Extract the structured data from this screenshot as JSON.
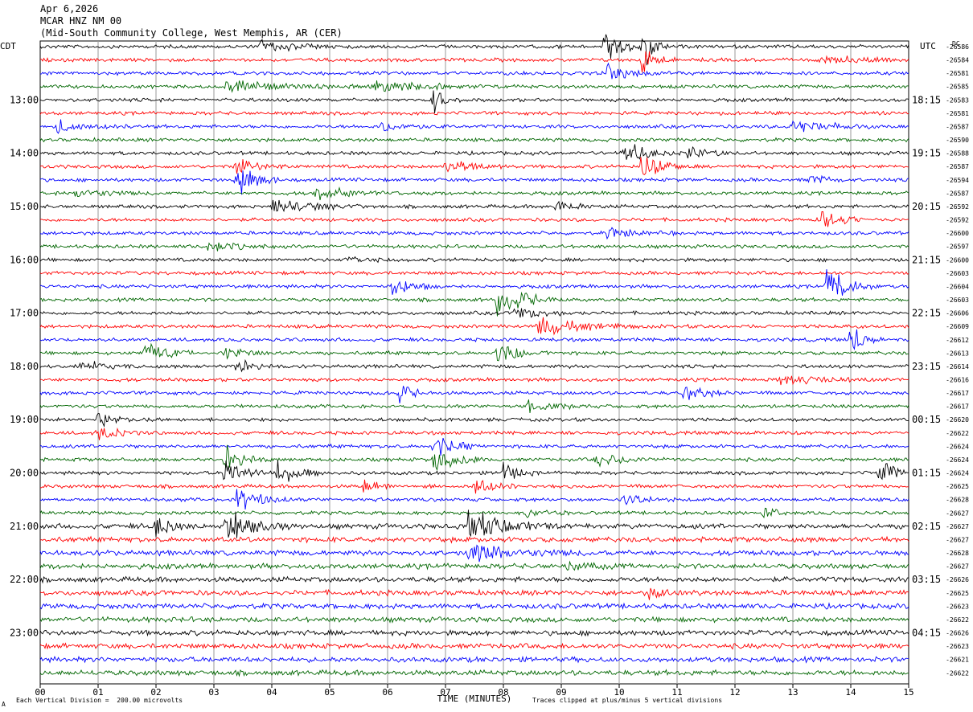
{
  "header": {
    "date": "Apr 6,2026",
    "station": "MCAR HNZ NM 00",
    "location": "(Mid-South Community College, West Memphis, AR (CER)"
  },
  "axes": {
    "left_tz": "CDT",
    "right_tz": "UTC",
    "right_top_label": "DC",
    "xlabel": "TIME (MINUTES)"
  },
  "footer": {
    "left_note": "Each Vertical Division =  200.00 microvolts",
    "right_note": "Traces clipped at plus/minus 5 vertical divisions",
    "corner_mark": "A"
  },
  "colors": {
    "trace_cycle": [
      "#000000",
      "#ff0000",
      "#0000ff",
      "#006600"
    ],
    "grid": "#9a9a9a"
  },
  "chart_data": {
    "type": "line",
    "subtype": "helicorder",
    "x_ticks": [
      "00",
      "01",
      "02",
      "03",
      "04",
      "05",
      "06",
      "07",
      "08",
      "09",
      "10",
      "11",
      "12",
      "13",
      "14",
      "15"
    ],
    "xlim": [
      0,
      15
    ],
    "rows_per_hour": 4,
    "left_hour_labels": [
      "13:00",
      "14:00",
      "15:00",
      "16:00",
      "17:00",
      "18:00",
      "19:00",
      "20:00",
      "21:00",
      "22:00",
      "23:00"
    ],
    "right_hour_labels": [
      "18:15",
      "19:15",
      "20:15",
      "21:15",
      "22:15",
      "23:15",
      "00:15",
      "01:15",
      "02:15",
      "03:15",
      "04:15"
    ],
    "first_labeled_row": 4,
    "dc_offsets": [
      "-26586",
      "-26584",
      "-26581",
      "-26585",
      "-26583",
      "-26581",
      "-26587",
      "-26590",
      "-26588",
      "-26587",
      "-26594",
      "-26587",
      "-26592",
      "-26592",
      "-26600",
      "-26597",
      "-26600",
      "-26603",
      "-26604",
      "-26603",
      "-26606",
      "-26609",
      "-26612",
      "-26613",
      "-26614",
      "-26616",
      "-26617",
      "-26617",
      "-26620",
      "-26622",
      "-26624",
      "-26624",
      "-26624",
      "-26625",
      "-26628",
      "-26627",
      "-26627",
      "-26627",
      "-26628",
      "-26627",
      "-26626",
      "-26625",
      "-26623",
      "-26622",
      "-26626",
      "-26623",
      "-26621",
      "-26622"
    ],
    "events": [
      {
        "row": 0,
        "minute": 3.8,
        "amp": 9,
        "dur": 0.5
      },
      {
        "row": 0,
        "minute": 9.75,
        "amp": 40,
        "dur": 0.2
      },
      {
        "row": 0,
        "minute": 10.4,
        "amp": 48,
        "dur": 0.15
      },
      {
        "row": 1,
        "minute": 10.4,
        "amp": 22,
        "dur": 0.2
      },
      {
        "row": 1,
        "minute": 13.5,
        "amp": 8,
        "dur": 0.6
      },
      {
        "row": 2,
        "minute": 9.8,
        "amp": 14,
        "dur": 0.3
      },
      {
        "row": 3,
        "minute": 3.2,
        "amp": 9,
        "dur": 0.8
      },
      {
        "row": 3,
        "minute": 5.8,
        "amp": 8,
        "dur": 0.8
      },
      {
        "row": 4,
        "minute": 6.8,
        "amp": 16,
        "dur": 0.2
      },
      {
        "row": 6,
        "minute": 0.3,
        "amp": 9,
        "dur": 0.4
      },
      {
        "row": 6,
        "minute": 5.9,
        "amp": 8,
        "dur": 0.4
      },
      {
        "row": 6,
        "minute": 13.0,
        "amp": 10,
        "dur": 0.5
      },
      {
        "row": 8,
        "minute": 10.1,
        "amp": 18,
        "dur": 0.3
      },
      {
        "row": 8,
        "minute": 11.2,
        "amp": 10,
        "dur": 0.3
      },
      {
        "row": 9,
        "minute": 3.4,
        "amp": 16,
        "dur": 0.3
      },
      {
        "row": 9,
        "minute": 10.4,
        "amp": 25,
        "dur": 0.3
      },
      {
        "row": 9,
        "minute": 7.0,
        "amp": 12,
        "dur": 0.4
      },
      {
        "row": 10,
        "minute": 3.4,
        "amp": 26,
        "dur": 0.3
      },
      {
        "row": 10,
        "minute": 13.3,
        "amp": 12,
        "dur": 0.2
      },
      {
        "row": 11,
        "minute": 0.6,
        "amp": 8,
        "dur": 0.5
      },
      {
        "row": 11,
        "minute": 4.7,
        "amp": 10,
        "dur": 0.6
      },
      {
        "row": 12,
        "minute": 4.0,
        "amp": 12,
        "dur": 0.6
      },
      {
        "row": 12,
        "minute": 8.9,
        "amp": 10,
        "dur": 0.3
      },
      {
        "row": 13,
        "minute": 13.5,
        "amp": 16,
        "dur": 0.3
      },
      {
        "row": 14,
        "minute": 9.8,
        "amp": 8,
        "dur": 0.4
      },
      {
        "row": 15,
        "minute": 2.9,
        "amp": 8,
        "dur": 0.4
      },
      {
        "row": 16,
        "minute": 5.3,
        "amp": 8,
        "dur": 0.3
      },
      {
        "row": 18,
        "minute": 6.1,
        "amp": 16,
        "dur": 0.3
      },
      {
        "row": 18,
        "minute": 13.6,
        "amp": 32,
        "dur": 0.3
      },
      {
        "row": 19,
        "minute": 7.9,
        "amp": 26,
        "dur": 0.4
      },
      {
        "row": 20,
        "minute": 8.2,
        "amp": 10,
        "dur": 0.4
      },
      {
        "row": 21,
        "minute": 8.6,
        "amp": 14,
        "dur": 0.6
      },
      {
        "row": 22,
        "minute": 14.0,
        "amp": 24,
        "dur": 0.2
      },
      {
        "row": 23,
        "minute": 1.8,
        "amp": 18,
        "dur": 0.3
      },
      {
        "row": 23,
        "minute": 3.2,
        "amp": 8,
        "dur": 0.4
      },
      {
        "row": 23,
        "minute": 7.9,
        "amp": 18,
        "dur": 0.3
      },
      {
        "row": 24,
        "minute": 0.7,
        "amp": 8,
        "dur": 0.4
      },
      {
        "row": 24,
        "minute": 3.4,
        "amp": 10,
        "dur": 0.3
      },
      {
        "row": 25,
        "minute": 12.8,
        "amp": 8,
        "dur": 0.6
      },
      {
        "row": 26,
        "minute": 6.2,
        "amp": 14,
        "dur": 0.2
      },
      {
        "row": 26,
        "minute": 11.1,
        "amp": 14,
        "dur": 0.3
      },
      {
        "row": 27,
        "minute": 8.4,
        "amp": 8,
        "dur": 0.4
      },
      {
        "row": 28,
        "minute": 1.0,
        "amp": 10,
        "dur": 0.3
      },
      {
        "row": 29,
        "minute": 1.0,
        "amp": 10,
        "dur": 0.3
      },
      {
        "row": 30,
        "minute": 6.8,
        "amp": 18,
        "dur": 0.3
      },
      {
        "row": 31,
        "minute": 3.2,
        "amp": 20,
        "dur": 0.3
      },
      {
        "row": 31,
        "minute": 6.8,
        "amp": 24,
        "dur": 0.3
      },
      {
        "row": 31,
        "minute": 9.6,
        "amp": 8,
        "dur": 0.5
      },
      {
        "row": 32,
        "minute": 3.2,
        "amp": 20,
        "dur": 0.3
      },
      {
        "row": 32,
        "minute": 4.1,
        "amp": 18,
        "dur": 0.3
      },
      {
        "row": 32,
        "minute": 8.0,
        "amp": 16,
        "dur": 0.2
      },
      {
        "row": 32,
        "minute": 14.5,
        "amp": 18,
        "dur": 0.3
      },
      {
        "row": 33,
        "minute": 5.6,
        "amp": 10,
        "dur": 0.2
      },
      {
        "row": 33,
        "minute": 7.5,
        "amp": 14,
        "dur": 0.3
      },
      {
        "row": 34,
        "minute": 3.4,
        "amp": 22,
        "dur": 0.3
      },
      {
        "row": 34,
        "minute": 10.1,
        "amp": 10,
        "dur": 0.3
      },
      {
        "row": 35,
        "minute": 12.5,
        "amp": 10,
        "dur": 0.2
      },
      {
        "row": 35,
        "minute": 8.4,
        "amp": 6,
        "dur": 0.3
      },
      {
        "row": 36,
        "minute": 2.0,
        "amp": 20,
        "dur": 0.2
      },
      {
        "row": 36,
        "minute": 3.2,
        "amp": 26,
        "dur": 0.4
      },
      {
        "row": 36,
        "minute": 7.4,
        "amp": 24,
        "dur": 0.5
      },
      {
        "row": 38,
        "minute": 7.4,
        "amp": 12,
        "dur": 0.8
      },
      {
        "row": 39,
        "minute": 9.1,
        "amp": 8,
        "dur": 0.3
      },
      {
        "row": 41,
        "minute": 10.5,
        "amp": 8,
        "dur": 0.3
      }
    ]
  }
}
